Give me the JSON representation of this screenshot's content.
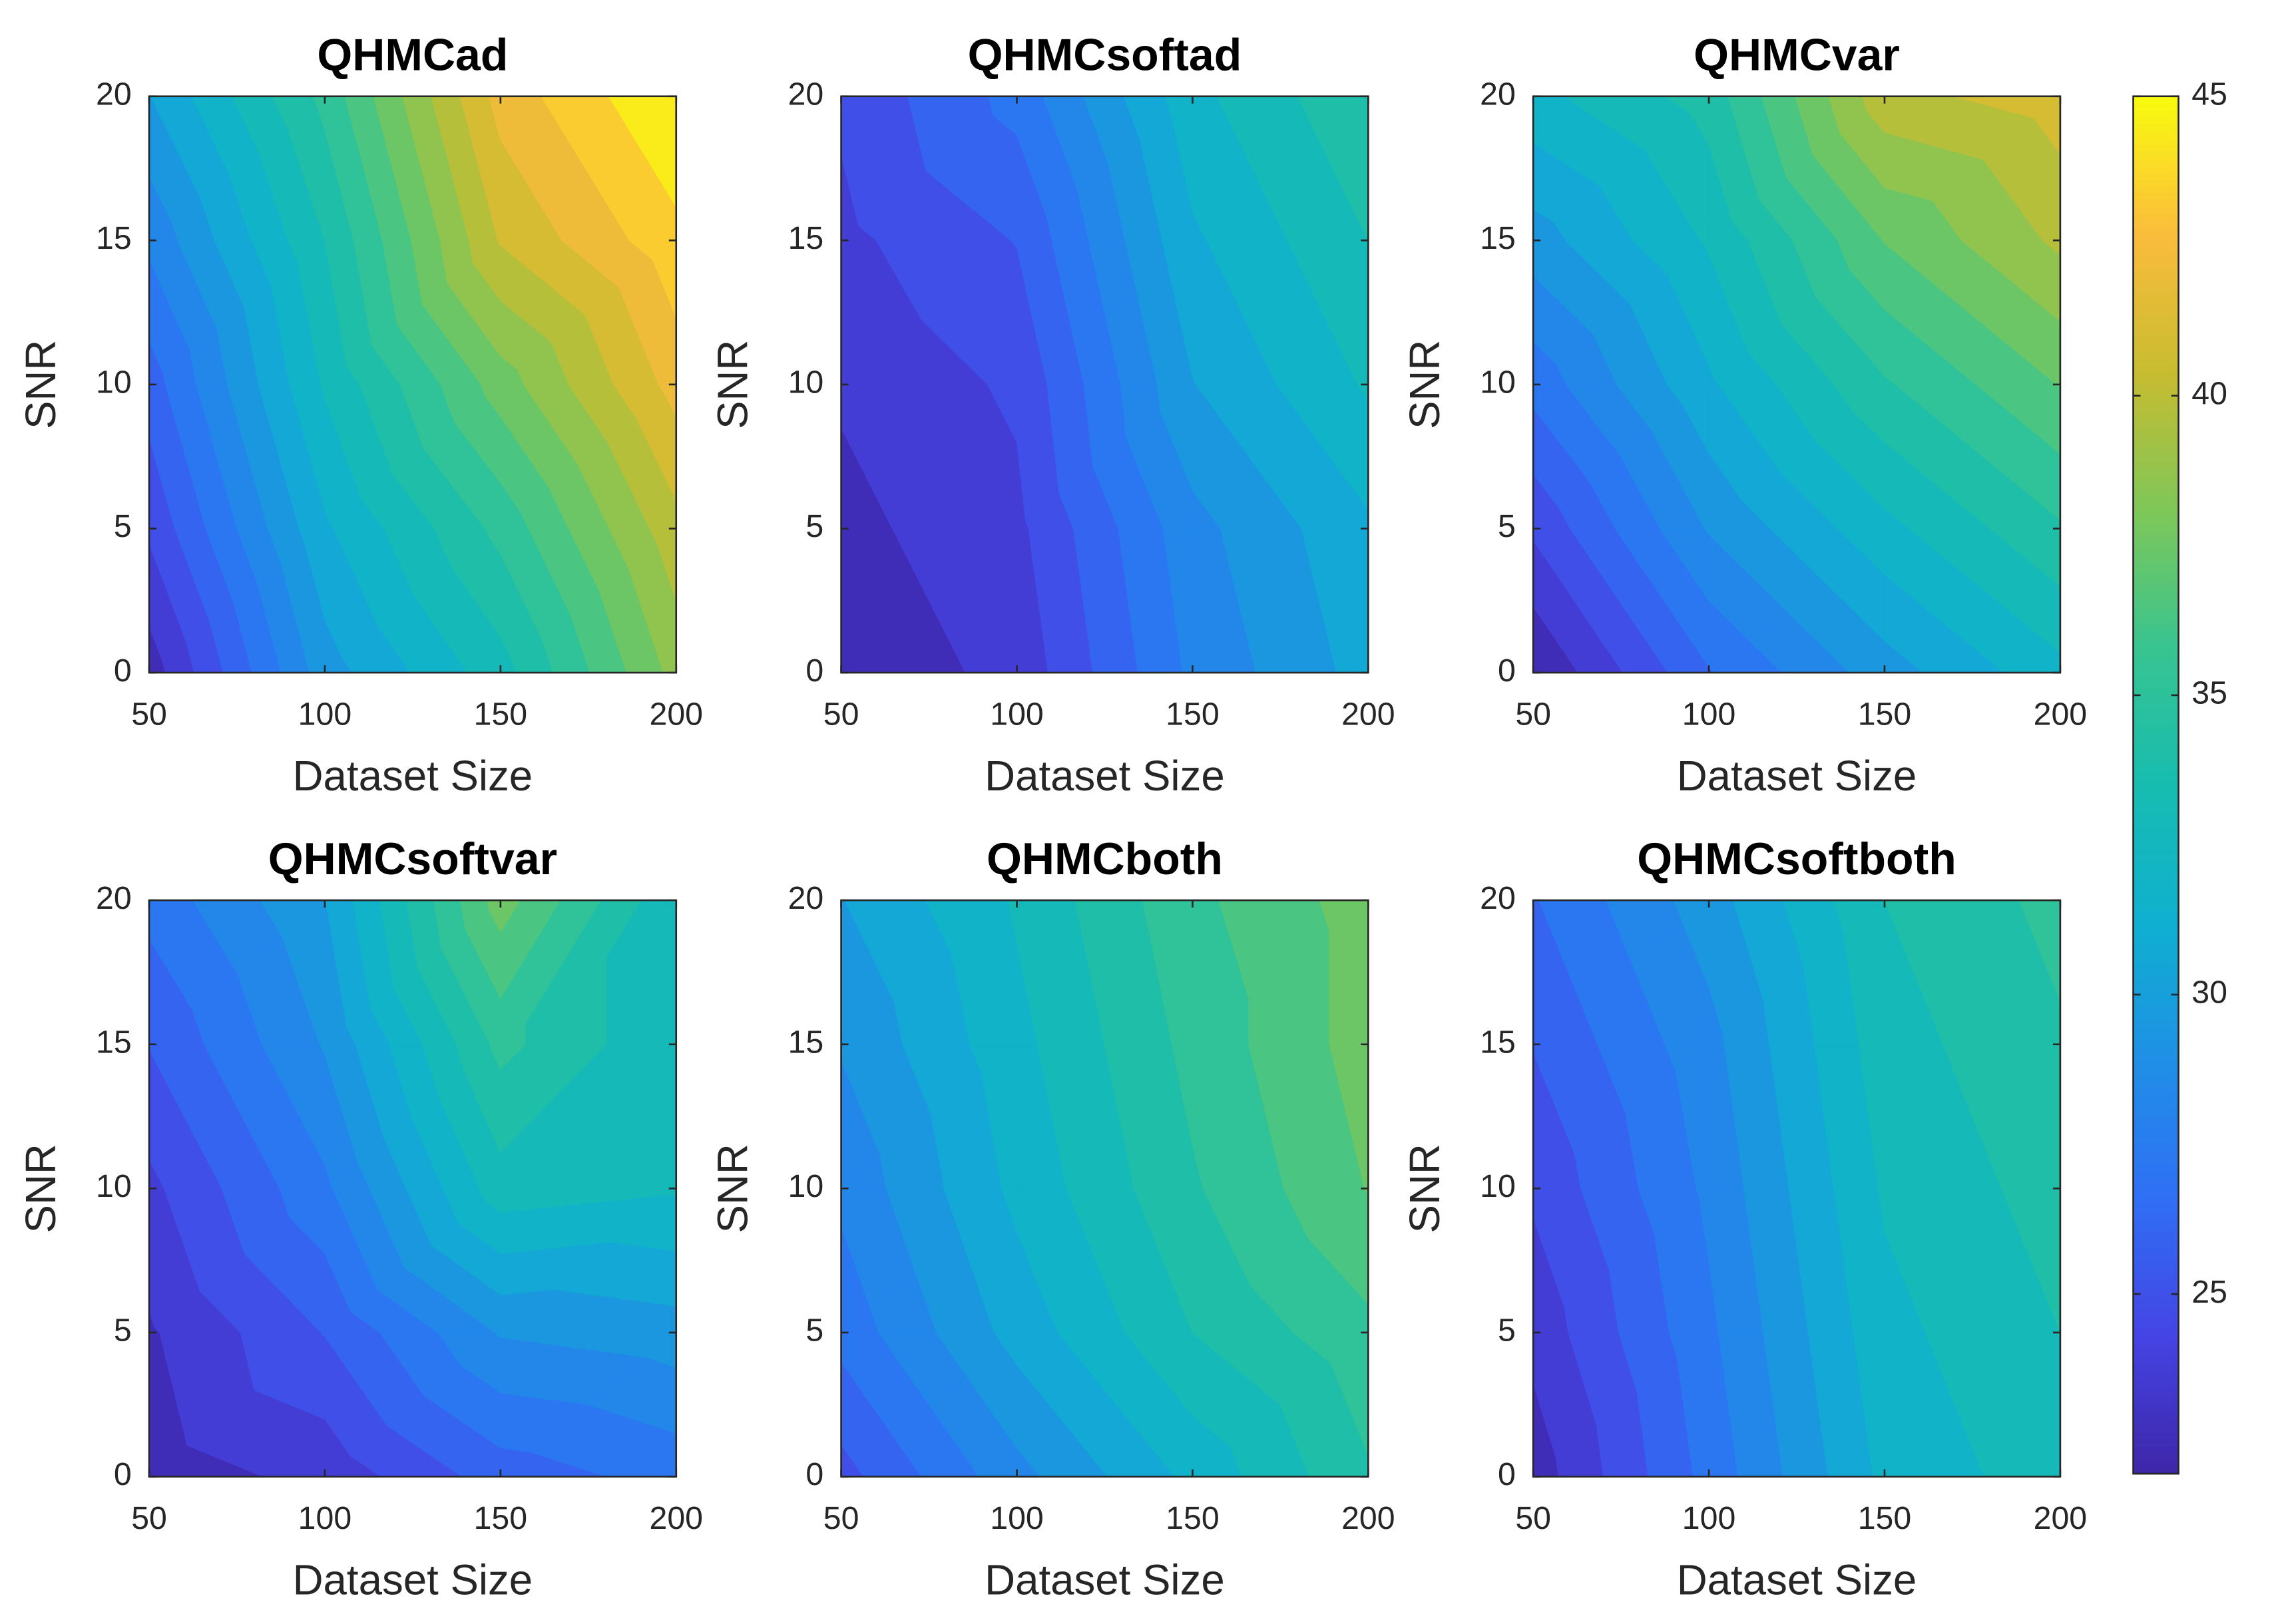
{
  "chart_data": [
    {
      "type": "contour",
      "title": "QHMCad",
      "xlabel": "Dataset Size",
      "ylabel": "SNR",
      "x": [
        50,
        100,
        150,
        200
      ],
      "y": [
        0,
        5,
        10,
        15,
        20
      ],
      "z": [
        [
          22.5,
          29.5,
          33,
          38.5
        ],
        [
          24.5,
          31,
          35,
          40
        ],
        [
          26,
          32.5,
          37.5,
          42
        ],
        [
          28,
          33.5,
          40.5,
          43.5
        ],
        [
          30,
          35,
          42,
          45
        ]
      ],
      "xlim": [
        50,
        200
      ],
      "ylim": [
        0,
        20
      ],
      "xticks": [
        50,
        100,
        150,
        200
      ],
      "yticks": [
        0,
        5,
        10,
        15,
        20
      ]
    },
    {
      "type": "contour",
      "title": "QHMCsoftad",
      "xlabel": "Dataset Size",
      "ylabel": "SNR",
      "x": [
        50,
        100,
        150,
        200
      ],
      "y": [
        0,
        5,
        10,
        15,
        20
      ],
      "z": [
        [
          22.3,
          23.5,
          28,
          30.5
        ],
        [
          22.8,
          24,
          28.5,
          31
        ],
        [
          23.3,
          24.5,
          30,
          32.5
        ],
        [
          24,
          25.5,
          31,
          33.5
        ],
        [
          24.5,
          27,
          32,
          34.5
        ]
      ],
      "xlim": [
        50,
        200
      ],
      "ylim": [
        0,
        20
      ],
      "xticks": [
        50,
        100,
        150,
        200
      ],
      "yticks": [
        0,
        5,
        10,
        15,
        20
      ]
    },
    {
      "type": "contour",
      "title": "QHMCvar",
      "xlabel": "Dataset Size",
      "ylabel": "SNR",
      "x": [
        50,
        100,
        150,
        200
      ],
      "y": [
        0,
        5,
        10,
        15,
        20
      ],
      "z": [
        [
          22,
          26.5,
          29.5,
          32
        ],
        [
          24.5,
          29,
          32,
          34.5
        ],
        [
          27,
          31,
          34.5,
          37
        ],
        [
          29.5,
          32.5,
          37,
          39.5
        ],
        [
          32,
          34,
          40,
          41
        ]
      ],
      "xlim": [
        50,
        200
      ],
      "ylim": [
        0,
        20
      ],
      "xticks": [
        50,
        100,
        150,
        200
      ],
      "yticks": [
        0,
        5,
        10,
        15,
        20
      ]
    },
    {
      "type": "contour",
      "title": "QHMCsoftvar",
      "xlabel": "Dataset Size",
      "ylabel": "SNR",
      "x": [
        50,
        100,
        150,
        200
      ],
      "y": [
        0,
        5,
        10,
        15,
        20
      ],
      "z": [
        [
          22.5,
          23.5,
          26,
          27
        ],
        [
          23,
          25.5,
          29,
          29.5
        ],
        [
          24,
          27.5,
          33,
          32.5
        ],
        [
          25.5,
          29,
          35,
          32.5
        ],
        [
          27,
          30,
          37.5,
          32.5
        ]
      ],
      "xlim": [
        50,
        200
      ],
      "ylim": [
        0,
        20
      ],
      "xticks": [
        50,
        100,
        150,
        200
      ],
      "yticks": [
        0,
        5,
        10,
        15,
        20
      ]
    },
    {
      "type": "contour",
      "title": "QHMCboth",
      "xlabel": "Dataset Size",
      "ylabel": "SNR",
      "x": [
        50,
        100,
        150,
        200
      ],
      "y": [
        0,
        5,
        10,
        15,
        20
      ],
      "z": [
        [
          25,
          28.5,
          31.5,
          34.5
        ],
        [
          27,
          30.5,
          33.5,
          35.5
        ],
        [
          28,
          31.5,
          34.5,
          37
        ],
        [
          29,
          32,
          35,
          37.5
        ],
        [
          30,
          32.5,
          35.5,
          37.5
        ]
      ],
      "xlim": [
        50,
        200
      ],
      "ylim": [
        0,
        20
      ],
      "xticks": [
        50,
        100,
        150,
        200
      ],
      "yticks": [
        0,
        5,
        10,
        15,
        20
      ]
    },
    {
      "type": "contour",
      "title": "QHMCsoftboth",
      "xlabel": "Dataset Size",
      "ylabel": "SNR",
      "x": [
        50,
        100,
        150,
        200
      ],
      "y": [
        0,
        5,
        10,
        15,
        20
      ],
      "z": [
        [
          22.5,
          27,
          31.5,
          33
        ],
        [
          23.5,
          27.5,
          32,
          33.5
        ],
        [
          24.5,
          28,
          32.5,
          34
        ],
        [
          25.5,
          28.5,
          33,
          34.5
        ],
        [
          26.5,
          29.5,
          33.5,
          35
        ]
      ],
      "xlim": [
        50,
        200
      ],
      "ylim": [
        0,
        20
      ],
      "xticks": [
        50,
        100,
        150,
        200
      ],
      "yticks": [
        0,
        5,
        10,
        15,
        20
      ]
    }
  ],
  "colorbar": {
    "lim": [
      22,
      45
    ],
    "ticks": [
      25,
      30,
      35,
      40,
      45
    ],
    "colormap": [
      "#3e26a8",
      "#4544e4",
      "#2f6ff5",
      "#1f8fe6",
      "#0fb0d0",
      "#17bcb0",
      "#38c490",
      "#7fc758",
      "#c8bc30",
      "#fbbc3c",
      "#f9fb0e"
    ]
  }
}
